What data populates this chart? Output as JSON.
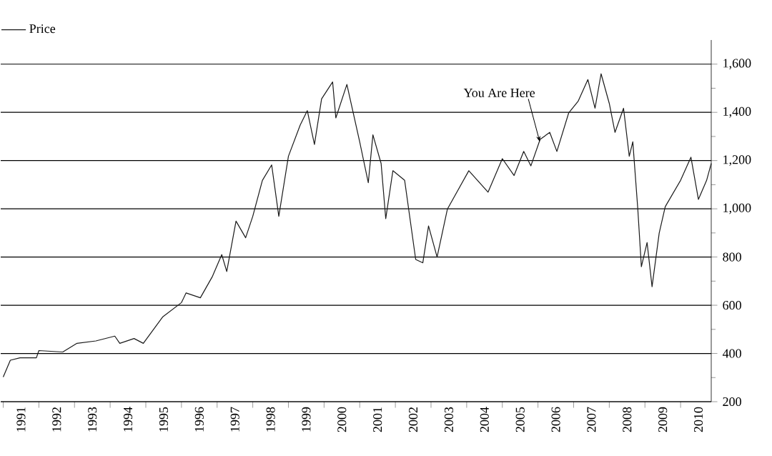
{
  "chart_data": {
    "type": "line",
    "series": [
      {
        "name": "Price",
        "color": "#1a1a1a",
        "x": [
          1991.0,
          1991.2,
          1991.47,
          1991.93,
          1992.0,
          1992.67,
          1993.07,
          1993.6,
          1994.13,
          1994.27,
          1994.67,
          1994.93,
          1995.47,
          1996.0,
          1996.13,
          1996.53,
          1996.87,
          1997.13,
          1997.27,
          1997.53,
          1997.8,
          1998.0,
          1998.27,
          1998.53,
          1998.73,
          1999.0,
          1999.33,
          1999.53,
          1999.73,
          1999.93,
          2000.24,
          2000.33,
          2000.64,
          2001.0,
          2001.24,
          2001.37,
          2001.6,
          2001.73,
          2001.93,
          2002.26,
          2002.57,
          2002.77,
          2002.93,
          2003.17,
          2003.46,
          2004.06,
          2004.6,
          2005.0,
          2005.33,
          2005.6,
          2005.8,
          2006.06,
          2006.33,
          2006.53,
          2006.86,
          2007.13,
          2007.4,
          2007.6,
          2007.77,
          2008.0,
          2008.16,
          2008.4,
          2008.56,
          2008.66,
          2008.8,
          2008.9,
          2009.06,
          2009.2,
          2009.4,
          2009.57,
          2010.0,
          2010.29,
          2010.5,
          2010.73,
          2010.86
        ],
        "values": [
          302,
          372,
          382,
          382,
          412,
          406,
          442,
          452,
          472,
          442,
          462,
          442,
          551,
          611,
          651,
          631,
          720,
          810,
          740,
          949,
          880,
          969,
          1118,
          1182,
          969,
          1218,
          1347,
          1407,
          1267,
          1456,
          1526,
          1377,
          1516,
          1277,
          1108,
          1307,
          1188,
          959,
          1158,
          1118,
          790,
          776,
          929,
          800,
          999,
          1158,
          1069,
          1208,
          1138,
          1238,
          1178,
          1288,
          1317,
          1238,
          1397,
          1447,
          1536,
          1417,
          1560,
          1437,
          1317,
          1417,
          1218,
          1278,
          999,
          760,
          860,
          677,
          899,
          1009,
          1118,
          1214,
          1039,
          1118,
          1188
        ]
      }
    ],
    "xlim": [
      1990.93,
      2010.86
    ],
    "xticks": [
      {
        "value": 1991,
        "label": null
      },
      {
        "value": 1991.5,
        "label": "1991"
      },
      {
        "value": 1992,
        "label": null
      },
      {
        "value": 1992.5,
        "label": "1992"
      },
      {
        "value": 1993,
        "label": null
      },
      {
        "value": 1993.5,
        "label": "1993"
      },
      {
        "value": 1994,
        "label": null
      },
      {
        "value": 1994.5,
        "label": "1994"
      },
      {
        "value": 1995,
        "label": null
      },
      {
        "value": 1995.5,
        "label": "1995"
      },
      {
        "value": 1996,
        "label": null
      },
      {
        "value": 1996.5,
        "label": "1996"
      },
      {
        "value": 1997,
        "label": null
      },
      {
        "value": 1997.5,
        "label": "1997"
      },
      {
        "value": 1998,
        "label": null
      },
      {
        "value": 1998.5,
        "label": "1998"
      },
      {
        "value": 1999,
        "label": null
      },
      {
        "value": 1999.5,
        "label": "1999"
      },
      {
        "value": 2000,
        "label": null
      },
      {
        "value": 2000.5,
        "label": "2000"
      },
      {
        "value": 2001,
        "label": null
      },
      {
        "value": 2001.5,
        "label": "2001"
      },
      {
        "value": 2002,
        "label": null
      },
      {
        "value": 2002.5,
        "label": "2002"
      },
      {
        "value": 2003,
        "label": null
      },
      {
        "value": 2003.5,
        "label": "2003"
      },
      {
        "value": 2004,
        "label": null
      },
      {
        "value": 2004.5,
        "label": "2004"
      },
      {
        "value": 2005,
        "label": null
      },
      {
        "value": 2005.5,
        "label": "2005"
      },
      {
        "value": 2006,
        "label": null
      },
      {
        "value": 2006.5,
        "label": "2006"
      },
      {
        "value": 2007,
        "label": null
      },
      {
        "value": 2007.5,
        "label": "2007"
      },
      {
        "value": 2008,
        "label": null
      },
      {
        "value": 2008.5,
        "label": "2008"
      },
      {
        "value": 2009,
        "label": null
      },
      {
        "value": 2009.5,
        "label": "2009"
      },
      {
        "value": 2010,
        "label": null
      },
      {
        "value": 2010.5,
        "label": "2010"
      }
    ],
    "ylim": [
      200,
      1700
    ],
    "yticks": [
      {
        "value": 200,
        "label": "200"
      },
      {
        "value": 300,
        "label": null
      },
      {
        "value": 400,
        "label": "400"
      },
      {
        "value": 500,
        "label": null
      },
      {
        "value": 600,
        "label": "600"
      },
      {
        "value": 700,
        "label": null
      },
      {
        "value": 800,
        "label": "800"
      },
      {
        "value": 900,
        "label": null
      },
      {
        "value": 1000,
        "label": "1,000"
      },
      {
        "value": 1100,
        "label": null
      },
      {
        "value": 1200,
        "label": "1,200"
      },
      {
        "value": 1300,
        "label": null
      },
      {
        "value": 1400,
        "label": "1,400"
      },
      {
        "value": 1500,
        "label": null
      },
      {
        "value": 1600,
        "label": "1,600"
      }
    ],
    "grid": "y",
    "legend": "top left",
    "line_style": "solid",
    "marker": "none",
    "annotations": [
      {
        "text": "You Are Here",
        "x": 2006.05,
        "y": 1278
      }
    ]
  }
}
